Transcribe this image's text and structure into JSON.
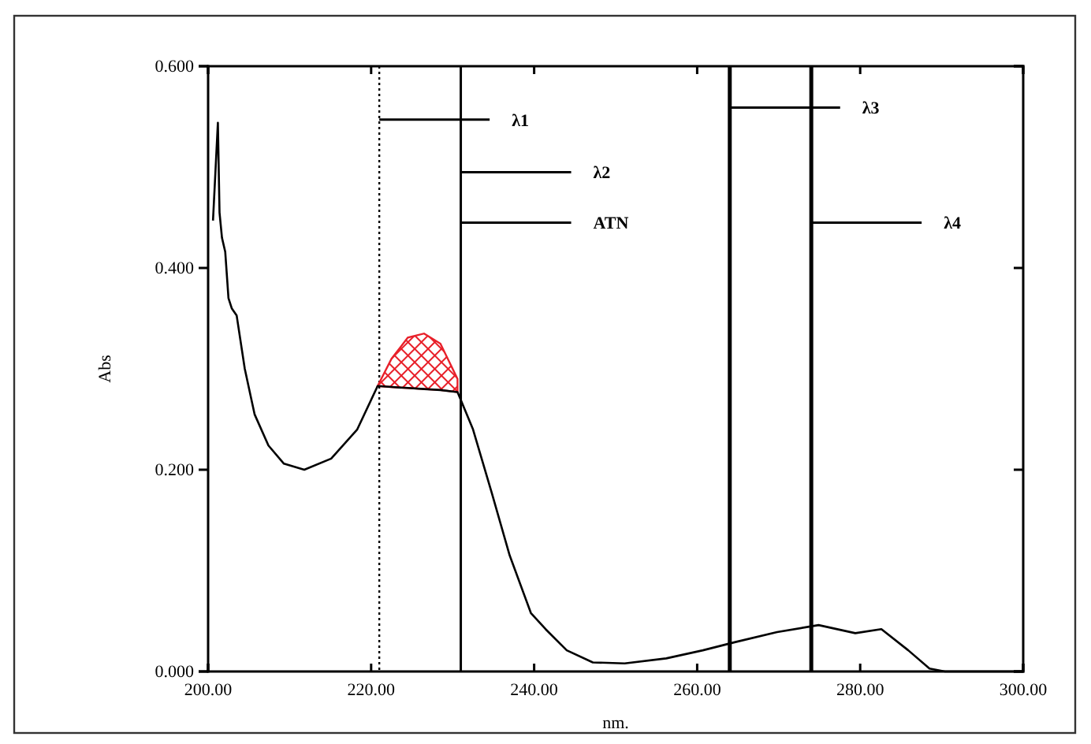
{
  "chart_data": {
    "type": "line",
    "xlabel": "nm.",
    "ylabel": "Abs",
    "xlim": [
      200,
      300
    ],
    "ylim": [
      0,
      0.6
    ],
    "xticks": [
      {
        "value": 200,
        "label": "200.00"
      },
      {
        "value": 220,
        "label": "220.00"
      },
      {
        "value": 240,
        "label": "240.00"
      },
      {
        "value": 260,
        "label": "260.00"
      },
      {
        "value": 280,
        "label": "280.00"
      },
      {
        "value": 300,
        "label": "300.00"
      }
    ],
    "yticks": [
      {
        "value": 0,
        "label": "0.000"
      },
      {
        "value": 0.2,
        "label": "0.200"
      },
      {
        "value": 0.4,
        "label": "0.400"
      },
      {
        "value": 0.6,
        "label": "0.600"
      }
    ],
    "marker": "none",
    "series": [
      {
        "color": "#000000",
        "x": [
          200.6,
          201.2,
          201.4,
          201.7,
          202.1,
          202.5,
          202.9,
          203.5,
          204.5,
          205.7,
          207.4,
          209.3,
          211.8,
          215.1,
          218.3,
          220.8,
          222.5,
          224.5,
          226.5,
          228.5,
          230.6,
          232.5,
          234.8,
          237.0,
          239.6,
          241.4,
          244.0,
          247.2,
          251.1,
          256.2,
          260.7,
          264.6,
          269.8,
          274.9,
          279.4,
          282.6,
          285.9,
          288.5,
          290.4,
          300.0
        ],
        "values": [
          0.447,
          0.544,
          0.455,
          0.43,
          0.416,
          0.37,
          0.36,
          0.353,
          0.3,
          0.255,
          0.224,
          0.206,
          0.2,
          0.211,
          0.24,
          0.283,
          0.282,
          0.281,
          0.28,
          0.279,
          0.277,
          0.24,
          0.177,
          0.115,
          0.058,
          0.042,
          0.021,
          0.009,
          0.008,
          0.013,
          0.021,
          0.029,
          0.039,
          0.046,
          0.038,
          0.042,
          0.021,
          0.003,
          0,
          0
        ],
        "lower": [
          null,
          null,
          null,
          null,
          null,
          null,
          null,
          null,
          null,
          null,
          null,
          null,
          null,
          null,
          null,
          0.283,
          0.282,
          0.281,
          0.28,
          0.279,
          0.277,
          null,
          null,
          null,
          null,
          null,
          null,
          null,
          null,
          null,
          null,
          null,
          null,
          null,
          null,
          null,
          null,
          null,
          null,
          null
        ],
        "upper": [
          null,
          null,
          null,
          null,
          null,
          null,
          null,
          null,
          null,
          null,
          null,
          null,
          null,
          null,
          null,
          0.283,
          0.31,
          0.331,
          0.335,
          0.325,
          0.29,
          null,
          null,
          null,
          null,
          null,
          null,
          null,
          null,
          null,
          null,
          null,
          null,
          null,
          null,
          null,
          null,
          null,
          null,
          null
        ]
      }
    ],
    "ref_lines": [
      {
        "axis": "x",
        "value": 221,
        "line_style": "dotted",
        "color": "#000000"
      },
      {
        "axis": "x",
        "value": 231,
        "line_style": "solid",
        "color": "#000000"
      },
      {
        "axis": "x",
        "value": 264,
        "line_style": "solid",
        "color": "#000000"
      },
      {
        "axis": "x",
        "value": 274,
        "line_style": "solid",
        "color": "#000000"
      }
    ],
    "annotations": [
      {
        "text": "λ1",
        "x": 221,
        "y": 0.547
      },
      {
        "text": "λ2",
        "x": 231,
        "y": 0.495
      },
      {
        "text": "ATN",
        "x": 231,
        "y": 0.445
      },
      {
        "text": "λ3",
        "x": 264,
        "y": 0.559
      },
      {
        "text": "λ4",
        "x": 274,
        "y": 0.445
      }
    ]
  }
}
